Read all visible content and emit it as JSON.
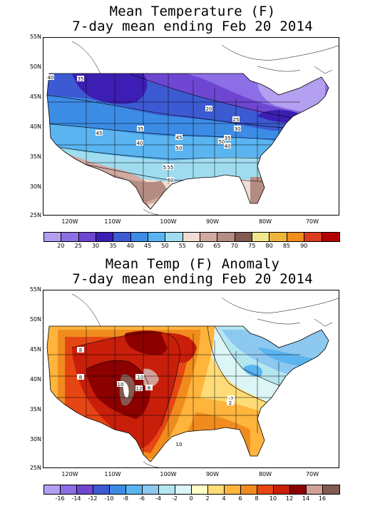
{
  "top": {
    "title_line1": "Mean Temperature (F)",
    "title_line2": "7-day mean ending Feb 20 2014",
    "lat_labels": [
      "55N",
      "50N",
      "45N",
      "40N",
      "35N",
      "30N",
      "25N"
    ],
    "lon_labels": [
      "120W",
      "110W",
      "100W",
      "90W",
      "80W",
      "70W"
    ],
    "colorbar_labels": [
      "20",
      "25",
      "30",
      "35",
      "40",
      "45",
      "50",
      "55",
      "60",
      "65",
      "70",
      "75",
      "80",
      "85",
      "90"
    ],
    "colorbar_colors": [
      "#b4a0f0",
      "#8c6ee6",
      "#6e46d2",
      "#3c1eb4",
      "#3c5ad2",
      "#3c8ce6",
      "#5ab4f0",
      "#a0dcf0",
      "#f0dcd2",
      "#d2aaa0",
      "#b48c82",
      "#825a50",
      "#f0e68c",
      "#f0b43c",
      "#f08c1e",
      "#dc3c1e",
      "#b40000"
    ],
    "contour_labels": [
      "35",
      "40",
      "20",
      "25",
      "30",
      "45",
      "35",
      "40",
      "45",
      "50",
      "55",
      "50",
      "35",
      "40",
      "55",
      "60"
    ]
  },
  "bottom": {
    "title_line1": "Mean Temp (F) Anomaly",
    "title_line2": "7-day mean ending Feb 20 2014",
    "lat_labels": [
      "55N",
      "50N",
      "45N",
      "40N",
      "35N",
      "30N",
      "25N"
    ],
    "lon_labels": [
      "120W",
      "110W",
      "100W",
      "90W",
      "80W",
      "70W"
    ],
    "colorbar_labels": [
      "-16",
      "-14",
      "-12",
      "-10",
      "-8",
      "-6",
      "-4",
      "-2",
      "0",
      "2",
      "4",
      "6",
      "8",
      "10",
      "12",
      "14",
      "16"
    ],
    "colorbar_colors": [
      "#b4a0f0",
      "#8c6ee6",
      "#6e46d2",
      "#3c5ad2",
      "#3c8ce6",
      "#5ab4f0",
      "#8cc8f0",
      "#b4e6f0",
      "#dcf5f5",
      "#ffffc8",
      "#ffdc78",
      "#ffb43c",
      "#f08c1e",
      "#e64614",
      "#c81e0a",
      "#8c0000",
      "#d2a096",
      "#825a50"
    ],
    "contour_labels": [
      "8",
      "8",
      "10",
      "10",
      "10",
      "8",
      "12",
      "10",
      "-2",
      "2",
      "10"
    ]
  },
  "colors": {
    "boundary": "#000000",
    "land_blank": "#ffffff"
  }
}
